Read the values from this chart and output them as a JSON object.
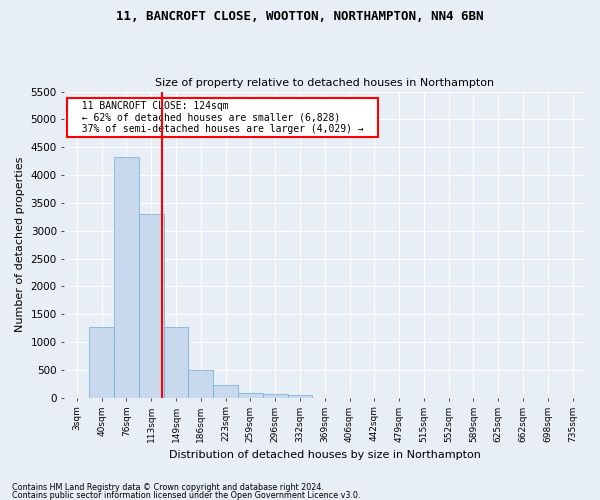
{
  "title1": "11, BANCROFT CLOSE, WOOTTON, NORTHAMPTON, NN4 6BN",
  "title2": "Size of property relative to detached houses in Northampton",
  "xlabel": "Distribution of detached houses by size in Northampton",
  "ylabel": "Number of detached properties",
  "footer1": "Contains HM Land Registry data © Crown copyright and database right 2024.",
  "footer2": "Contains public sector information licensed under the Open Government Licence v3.0.",
  "annotation_title": "11 BANCROFT CLOSE: 124sqm",
  "annotation_line1": "← 62% of detached houses are smaller (6,828)",
  "annotation_line2": "37% of semi-detached houses are larger (4,029) →",
  "bar_color": "#c8d9ee",
  "bar_edge_color": "#6baed6",
  "vline_color": "red",
  "bg_color": "#e8eef6",
  "grid_color": "#ffffff",
  "categories": [
    "3sqm",
    "40sqm",
    "76sqm",
    "113sqm",
    "149sqm",
    "186sqm",
    "223sqm",
    "259sqm",
    "296sqm",
    "332sqm",
    "369sqm",
    "406sqm",
    "442sqm",
    "479sqm",
    "515sqm",
    "552sqm",
    "589sqm",
    "625sqm",
    "662sqm",
    "698sqm",
    "735sqm"
  ],
  "values": [
    0,
    1270,
    4330,
    3300,
    1270,
    490,
    220,
    90,
    70,
    55,
    0,
    0,
    0,
    0,
    0,
    0,
    0,
    0,
    0,
    0,
    0
  ],
  "ylim": [
    0,
    5500
  ],
  "yticks": [
    0,
    500,
    1000,
    1500,
    2000,
    2500,
    3000,
    3500,
    4000,
    4500,
    5000,
    5500
  ],
  "vline_x_index": 3.45,
  "title1_fontsize": 9,
  "title2_fontsize": 8,
  "ylabel_fontsize": 8,
  "xlabel_fontsize": 8
}
